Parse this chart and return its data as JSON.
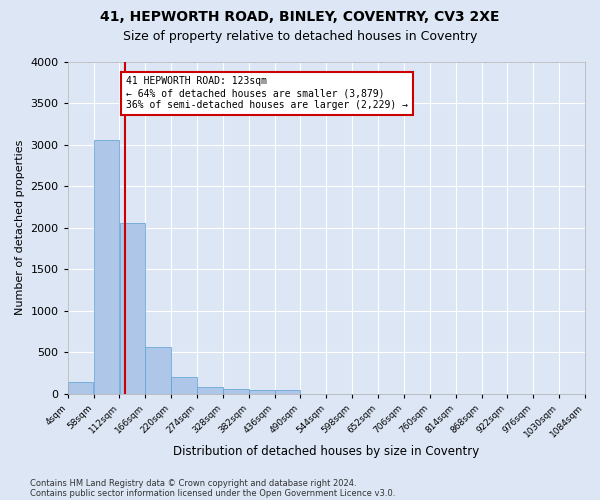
{
  "title_line1": "41, HEPWORTH ROAD, BINLEY, COVENTRY, CV3 2XE",
  "title_line2": "Size of property relative to detached houses in Coventry",
  "xlabel": "Distribution of detached houses by size in Coventry",
  "ylabel": "Number of detached properties",
  "footer_line1": "Contains HM Land Registry data © Crown copyright and database right 2024.",
  "footer_line2": "Contains public sector information licensed under the Open Government Licence v3.0.",
  "bin_edges": [
    4,
    58,
    112,
    166,
    220,
    274,
    328,
    382,
    436,
    490,
    544,
    598,
    652,
    706,
    760,
    814,
    868,
    922,
    976,
    1030,
    1084
  ],
  "bar_heights": [
    140,
    3060,
    2060,
    560,
    200,
    80,
    60,
    45,
    45,
    0,
    0,
    0,
    0,
    0,
    0,
    0,
    0,
    0,
    0,
    0
  ],
  "bar_color": "#aec6e8",
  "bar_edge_color": "#5a9fd4",
  "annotation_line1": "41 HEPWORTH ROAD: 123sqm",
  "annotation_line2": "← 64% of detached houses are smaller (3,879)",
  "annotation_line3": "36% of semi-detached houses are larger (2,229) →",
  "vline_x": 123,
  "vline_color": "#cc0000",
  "annotation_box_color": "#cc0000",
  "ylim": [
    0,
    4000
  ],
  "yticks": [
    0,
    500,
    1000,
    1500,
    2000,
    2500,
    3000,
    3500,
    4000
  ],
  "background_color": "#dce6f5",
  "plot_bg_color": "#dce6f5",
  "grid_color": "#ffffff",
  "title_fontsize": 10,
  "subtitle_fontsize": 9
}
